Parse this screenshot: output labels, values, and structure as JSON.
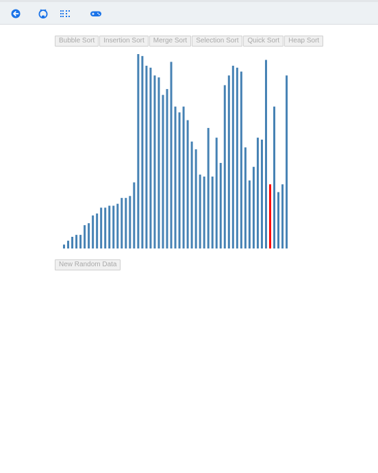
{
  "toolbar": {
    "icons": [
      "back-arrow-icon",
      "github-icon",
      "grid-dots-icon",
      "gamepad-icon"
    ],
    "accent_color": "#1a73e8"
  },
  "algorithms": [
    "Bubble Sort",
    "Insertion Sort",
    "Merge Sort",
    "Selection Sort",
    "Quick Sort",
    "Heap Sort"
  ],
  "actions": {
    "new_data_label": "New Random Data"
  },
  "chart_data": {
    "type": "bar",
    "bar_color": "#4682b4",
    "highlight_color": "#ff0000",
    "highlight_index": 50,
    "ylim": [
      0,
      100
    ],
    "values": [
      2,
      4,
      6,
      7,
      7,
      12,
      13,
      17,
      18,
      21,
      21,
      22,
      22,
      23,
      26,
      26,
      27,
      34,
      100,
      99,
      94,
      93,
      89,
      88,
      79,
      82,
      96,
      73,
      70,
      73,
      66,
      55,
      51,
      38,
      37,
      62,
      37,
      57,
      44,
      84,
      89,
      94,
      93,
      91,
      52,
      35,
      42,
      57,
      56,
      97,
      33,
      73,
      29,
      33,
      89
    ]
  }
}
